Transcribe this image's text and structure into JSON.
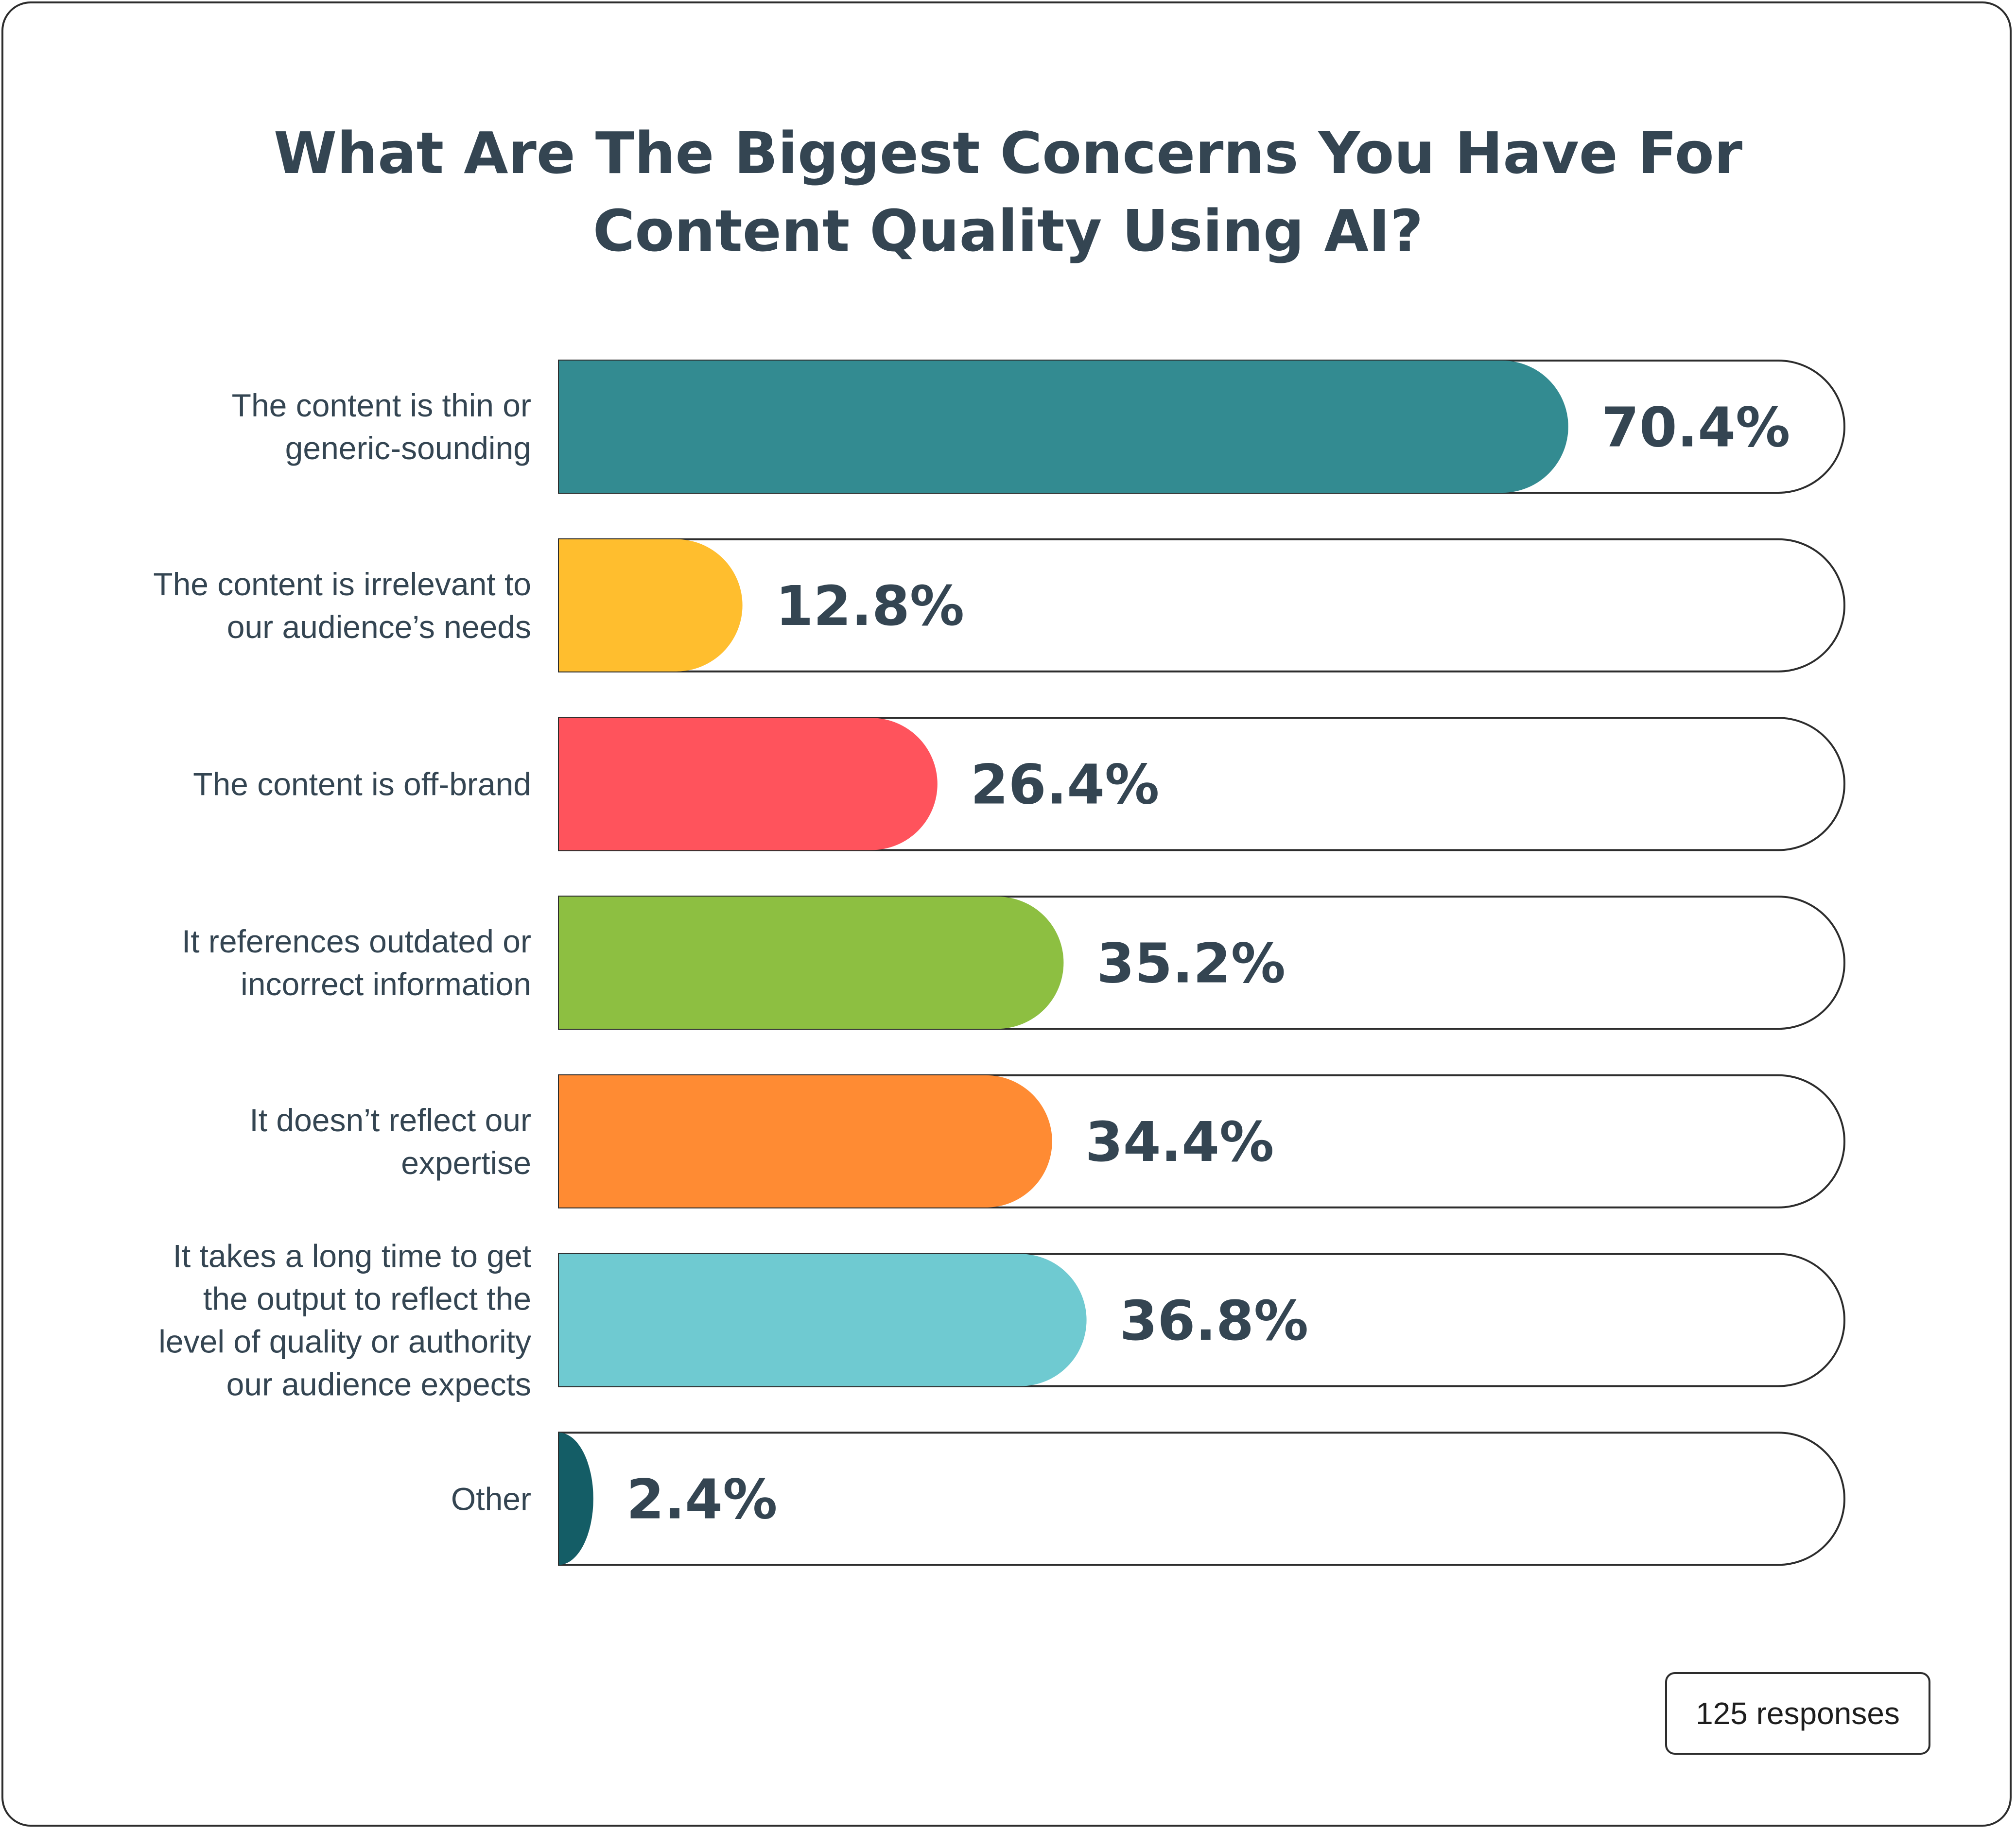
{
  "chart_data": {
    "type": "bar",
    "orientation": "horizontal",
    "title_lines": [
      "What Are The Biggest Concerns You Have For",
      "Content Quality Using AI?"
    ],
    "xlim": [
      0,
      100
    ],
    "grid": false,
    "categories": [
      [
        "The content is thin or",
        "generic-sounding"
      ],
      [
        "The content is irrelevant to",
        "our audience’s needs"
      ],
      [
        "The content is off-brand"
      ],
      [
        "It references outdated or",
        "incorrect information"
      ],
      [
        "It doesn’t reflect our",
        "expertise"
      ],
      [
        "It takes a long time to get",
        "the output to reflect the",
        "level of quality or authority",
        "our audience expects"
      ],
      [
        "Other"
      ]
    ],
    "values": [
      70.4,
      12.8,
      26.4,
      35.2,
      34.4,
      36.8,
      2.4
    ],
    "value_labels": [
      "70.4%",
      "12.8%",
      "26.4%",
      "35.2%",
      "34.4%",
      "36.8%",
      "2.4%"
    ],
    "colors": [
      "#338b91",
      "#ffbe2e",
      "#ff535c",
      "#8dbf41",
      "#ff8b33",
      "#6fcad1",
      "#145d66"
    ]
  },
  "footer": {
    "responses": "125 responses"
  }
}
